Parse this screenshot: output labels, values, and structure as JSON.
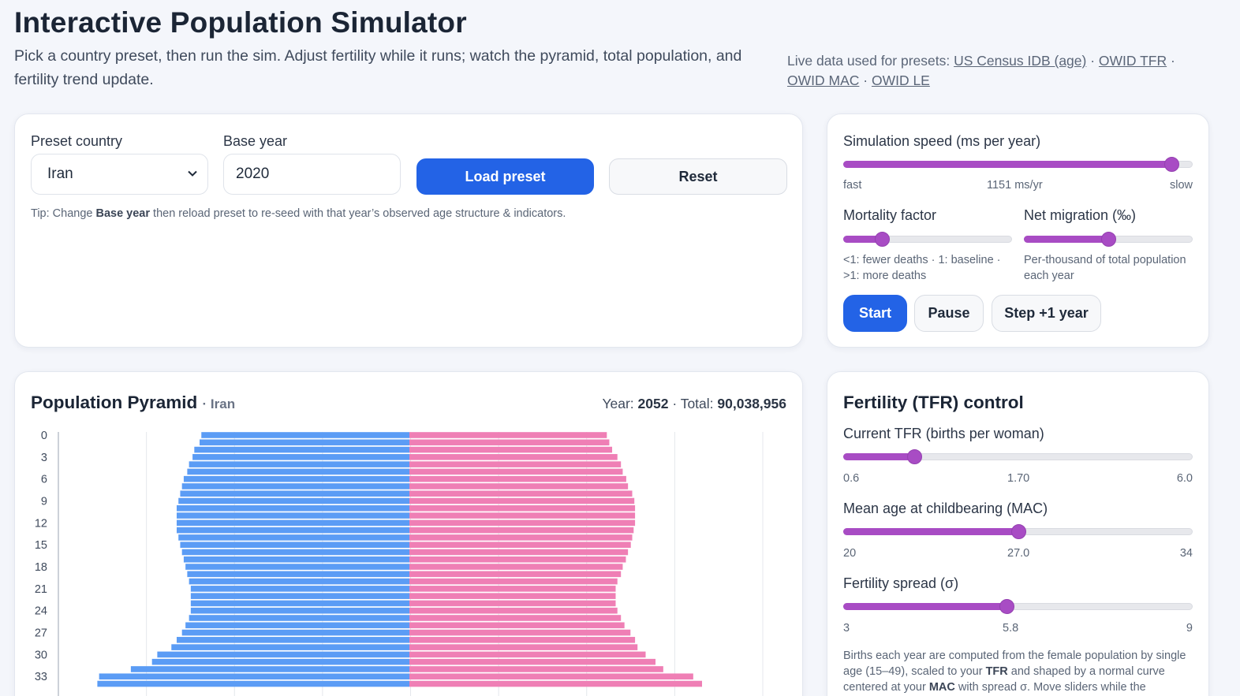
{
  "header": {
    "title": "Interactive Population Simulator",
    "subtitle": "Pick a country preset, then run the sim. Adjust fertility while it runs; watch the pyramid, total population, and fertility trend update.",
    "sources_prefix": "Live data used for presets: ",
    "sources": [
      "US Census IDB (age)",
      "OWID TFR",
      "OWID MAC",
      "OWID LE"
    ],
    "separator": " · "
  },
  "preset": {
    "country_label": "Preset country",
    "country_value": "Iran",
    "base_year_label": "Base year",
    "base_year_value": "2020",
    "load_button": "Load preset",
    "reset_button": "Reset",
    "tip_prefix": "Tip: Change ",
    "tip_bold": "Base year",
    "tip_suffix": " then reload preset to re-seed with that year’s observed age structure & indicators."
  },
  "sim": {
    "speed_label": "Simulation speed (ms per year)",
    "speed_min_label": "fast",
    "speed_readout": "1151 ms/yr",
    "speed_max_label": "slow",
    "speed_fraction": 0.94,
    "mortality_label": "Mortality factor",
    "mortality_fraction": 0.23,
    "mortality_help": "<1: fewer deaths · 1: baseline · >1: more deaths",
    "migration_label": "Net migration (‰)",
    "migration_fraction": 0.5,
    "migration_help": "Per-thousand of total population each year",
    "start_button": "Start",
    "pause_button": "Pause",
    "step_button": "Step +1 year"
  },
  "pyramid": {
    "title": "Population Pyramid",
    "country": "· Iran",
    "year_label": "Year: ",
    "year_value": "2052",
    "total_label": " · Total: ",
    "total_value": "90,038,956"
  },
  "fertility": {
    "title": "Fertility (TFR) control",
    "tfr_label": "Current TFR (births per woman)",
    "tfr_min": "0.6",
    "tfr_value": "1.70",
    "tfr_max": "6.0",
    "tfr_fraction": 0.204,
    "mac_label": "Mean age at childbearing (MAC)",
    "mac_min": "20",
    "mac_value": "27.0",
    "mac_max": "34",
    "mac_fraction": 0.5,
    "spread_label": "Fertility spread (σ)",
    "spread_min": "3",
    "spread_value": "5.8",
    "spread_max": "9",
    "spread_fraction": 0.467,
    "help_1": "Births each year are computed from the female population by single age (15–49), scaled to your ",
    "help_tfr": "TFR",
    "help_2": " and shaped by a normal curve centered at your ",
    "help_mac": "MAC",
    "help_3": " with spread σ. Move sliders while the"
  },
  "chart_data": {
    "type": "bar",
    "orientation": "horizontal-pyramid",
    "ages": [
      0,
      1,
      2,
      3,
      4,
      5,
      6,
      7,
      8,
      9,
      10,
      11,
      12,
      13,
      14,
      15,
      16,
      17,
      18,
      19,
      20,
      21,
      22,
      23,
      24,
      25,
      26,
      27,
      28,
      29,
      30,
      31,
      32,
      33,
      34
    ],
    "tick_labels": [
      "0",
      "3",
      "6",
      "9",
      "12",
      "15",
      "18",
      "21",
      "24",
      "27",
      "30",
      "33"
    ],
    "series": [
      {
        "name": "",
        "color": "#5b9cf5",
        "values": [
          0.59,
          0.595,
          0.61,
          0.615,
          0.625,
          0.63,
          0.64,
          0.645,
          0.65,
          0.655,
          0.66,
          0.66,
          0.66,
          0.66,
          0.655,
          0.65,
          0.645,
          0.64,
          0.635,
          0.63,
          0.625,
          0.62,
          0.62,
          0.62,
          0.62,
          0.625,
          0.635,
          0.645,
          0.66,
          0.675,
          0.715,
          0.73,
          0.79,
          0.88,
          0.885
        ]
      },
      {
        "name": "",
        "color": "#ef7fb5",
        "values": [
          0.56,
          0.567,
          0.575,
          0.59,
          0.6,
          0.605,
          0.615,
          0.62,
          0.632,
          0.638,
          0.64,
          0.64,
          0.64,
          0.636,
          0.632,
          0.628,
          0.62,
          0.614,
          0.605,
          0.6,
          0.59,
          0.585,
          0.585,
          0.585,
          0.59,
          0.6,
          0.61,
          0.627,
          0.64,
          0.647,
          0.67,
          0.698,
          0.72,
          0.805,
          0.83
        ]
      }
    ]
  }
}
